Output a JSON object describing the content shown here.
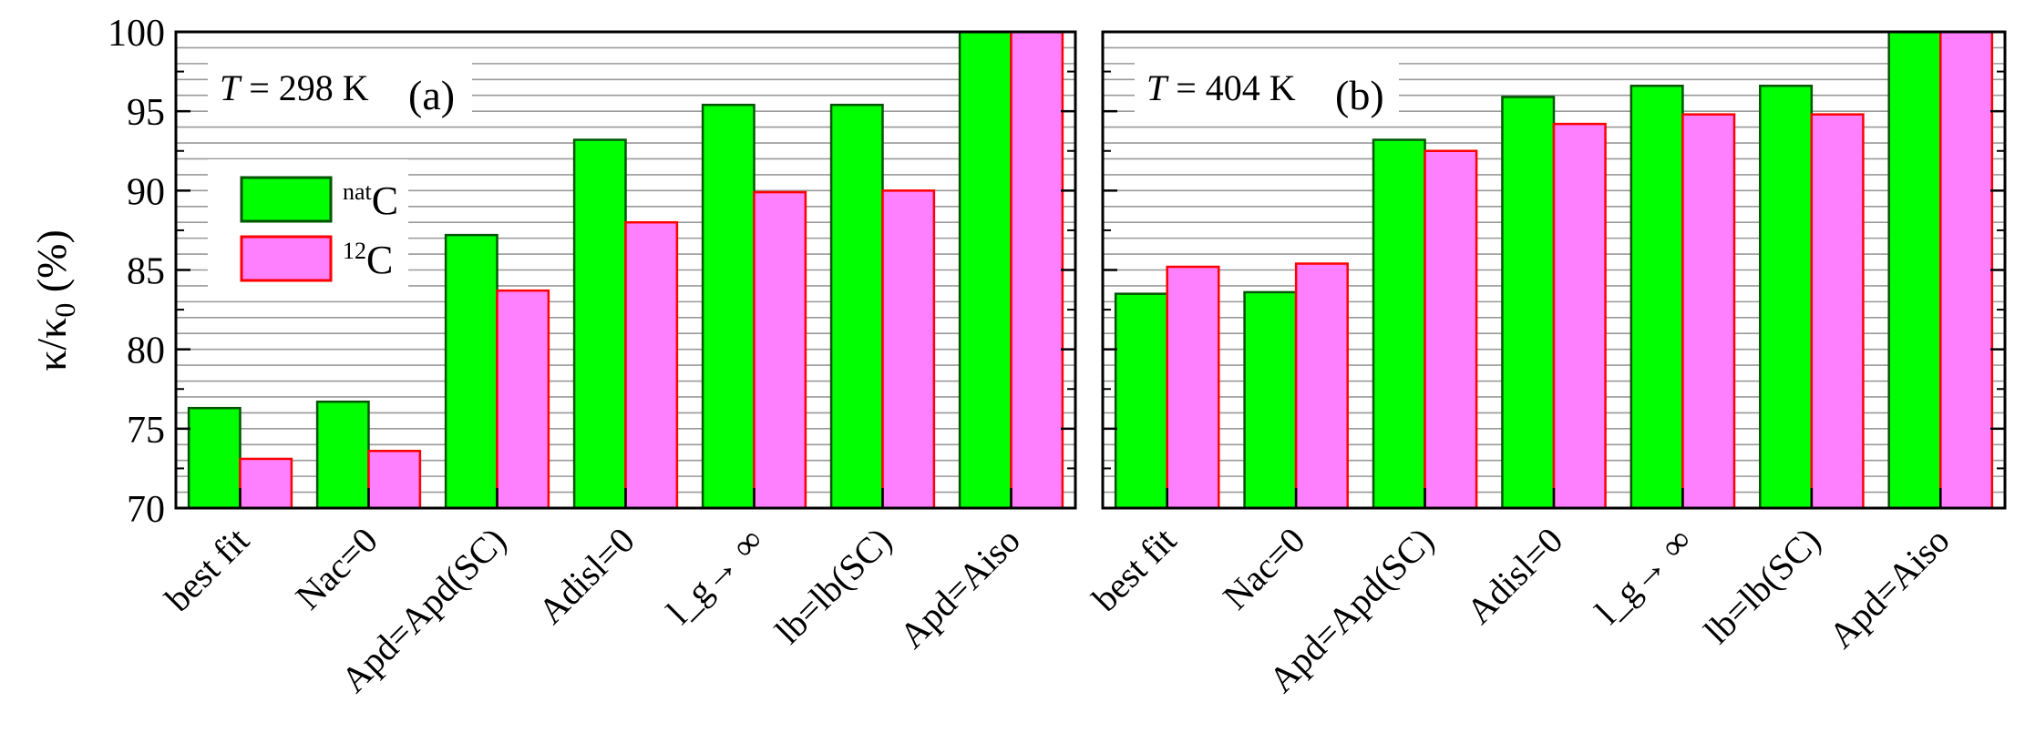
{
  "figure": {
    "ylabel_main": "κ/κ",
    "ylabel_sub": "0",
    "ylabel_unit": " (%)"
  },
  "legend": {
    "entries": [
      {
        "sup": "nat",
        "label": "C",
        "color": "#00ff00",
        "stroke": "#005500"
      },
      {
        "sup": "12",
        "label": "C",
        "color": "#ff80ff",
        "stroke": "#ff0000"
      }
    ]
  },
  "chart_data": [
    {
      "type": "bar",
      "panel": "(a)",
      "annotation_var": "T",
      "annotation_value": " = 298 K",
      "categories": [
        "best fit",
        "Nac=0",
        "Apd=Apd(SC)",
        "Adisl=0",
        "l_g→ ∞",
        "lb=lb(SC)",
        "Apd=Aiso"
      ],
      "series": [
        {
          "name": "natC",
          "values": [
            76.3,
            76.7,
            87.2,
            93.2,
            95.4,
            95.4,
            100
          ]
        },
        {
          "name": "12C",
          "values": [
            73.1,
            73.6,
            83.7,
            88.0,
            89.9,
            90.0,
            100
          ]
        }
      ],
      "ylim": [
        70,
        100
      ],
      "yticks": [
        70,
        75,
        80,
        85,
        90,
        95,
        100
      ],
      "grid": true,
      "legend_position": "upper-left"
    },
    {
      "type": "bar",
      "panel": "(b)",
      "annotation_var": "T",
      "annotation_value": " = 404 K",
      "categories": [
        "best fit",
        "Nac=0",
        "Apd=Apd(SC)",
        "Adisl=0",
        "l_g→ ∞",
        "lb=lb(SC)",
        "Apd=Aiso"
      ],
      "series": [
        {
          "name": "natC",
          "values": [
            83.5,
            83.6,
            93.2,
            95.9,
            96.6,
            96.6,
            100
          ]
        },
        {
          "name": "12C",
          "values": [
            85.2,
            85.4,
            92.5,
            94.2,
            94.8,
            94.8,
            100
          ]
        }
      ],
      "ylim": [
        70,
        100
      ],
      "yticks": [
        70,
        75,
        80,
        85,
        90,
        95,
        100
      ],
      "grid": true
    }
  ]
}
